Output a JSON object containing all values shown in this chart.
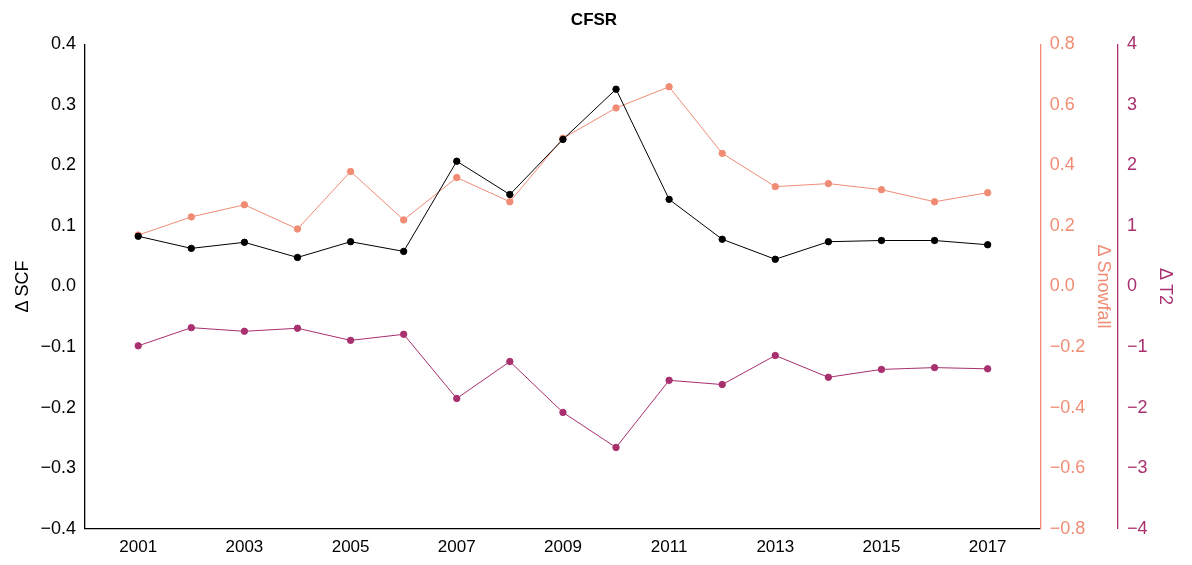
{
  "chart_data": {
    "type": "line",
    "title": "CFSR",
    "ylabel": "Δ SCF",
    "y2label": "Δ Snowfall",
    "y3label": "Δ T2",
    "x": [
      2001,
      2002,
      2003,
      2004,
      2005,
      2006,
      2007,
      2008,
      2009,
      2010,
      2011,
      2012,
      2013,
      2014,
      2015,
      2016,
      2017
    ],
    "xlim": [
      2000,
      2018
    ],
    "xticks": [
      2001,
      2003,
      2005,
      2007,
      2009,
      2011,
      2013,
      2015,
      2017
    ],
    "ylim": [
      -0.4,
      0.4
    ],
    "yticks": [
      {
        "value": -0.4,
        "label": "−0.4"
      },
      {
        "value": -0.3,
        "label": "−0.3"
      },
      {
        "value": -0.2,
        "label": "−0.2"
      },
      {
        "value": -0.1,
        "label": "−0.1"
      },
      {
        "value": 0,
        "label": "0.0"
      },
      {
        "value": 0.1,
        "label": "0.1"
      },
      {
        "value": 0.2,
        "label": "0.2"
      },
      {
        "value": 0.3,
        "label": "0.3"
      },
      {
        "value": 0.4,
        "label": "0.4"
      }
    ],
    "y2lim": [
      -0.8,
      0.8
    ],
    "y2ticks": [
      {
        "value": -0.8,
        "label": "−0.8"
      },
      {
        "value": -0.6,
        "label": "−0.6"
      },
      {
        "value": -0.4,
        "label": "−0.4"
      },
      {
        "value": -0.2,
        "label": "−0.2"
      },
      {
        "value": 0,
        "label": "0.0"
      },
      {
        "value": 0.2,
        "label": "0.2"
      },
      {
        "value": 0.4,
        "label": "0.4"
      },
      {
        "value": 0.6,
        "label": "0.6"
      },
      {
        "value": 0.8,
        "label": "0.8"
      }
    ],
    "y3lim": [
      -4,
      4
    ],
    "y3ticks": [
      {
        "value": -4,
        "label": "−4"
      },
      {
        "value": -3,
        "label": "−3"
      },
      {
        "value": -2,
        "label": "−2"
      },
      {
        "value": -1,
        "label": "−1"
      },
      {
        "value": 0,
        "label": "0"
      },
      {
        "value": 1,
        "label": "1"
      },
      {
        "value": 2,
        "label": "2"
      },
      {
        "value": 3,
        "label": "3"
      },
      {
        "value": 4,
        "label": "4"
      }
    ],
    "grid": false,
    "legend": false,
    "marker": "circle",
    "line_style": "solid",
    "series": [
      {
        "color": "#000000",
        "values": [
          0.083,
          0.063,
          0.073,
          0.048,
          0.074,
          0.058,
          0.207,
          0.152,
          0.243,
          0.326,
          0.144,
          0.078,
          0.045,
          0.074,
          0.076,
          0.076,
          0.069
        ]
      },
      {
        "color": "#f08c74",
        "axis": "y2",
        "values": [
          0.17,
          0.23,
          0.27,
          0.19,
          0.38,
          0.22,
          0.36,
          0.28,
          0.49,
          0.59,
          0.66,
          0.44,
          0.33,
          0.34,
          0.32,
          0.28,
          0.31
        ]
      },
      {
        "color": "#a8306e",
        "axis": "y3",
        "values": [
          -0.98,
          -0.68,
          -0.74,
          -0.69,
          -0.89,
          -0.79,
          -1.85,
          -1.24,
          -2.08,
          -2.66,
          -1.55,
          -1.62,
          -1.14,
          -1.5,
          -1.37,
          -1.34,
          -1.36
        ]
      }
    ]
  }
}
